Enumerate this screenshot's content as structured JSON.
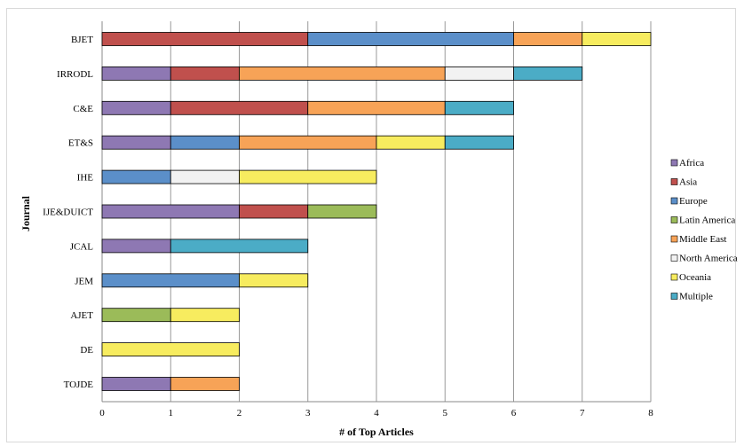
{
  "chart_data": {
    "type": "bar",
    "orientation": "horizontal",
    "stacked": true,
    "xlabel": "# of Top Articles",
    "ylabel": "Journal",
    "xlim": [
      0,
      8
    ],
    "xticks": [
      0,
      1,
      2,
      3,
      4,
      5,
      6,
      7,
      8
    ],
    "grid": "vertical",
    "legend_position": "right",
    "categories": [
      "BJET",
      "IRRODL",
      "C&E",
      "ET&S",
      "IHE",
      "IJE&DUICT",
      "JCAL",
      "JEM",
      "AJET",
      "DE",
      "TOJDE"
    ],
    "series": [
      {
        "name": "Africa",
        "color": "#8e78b3",
        "values": [
          0,
          1,
          1,
          1,
          0,
          2,
          1,
          0,
          0,
          0,
          1
        ]
      },
      {
        "name": "Asia",
        "color": "#c0504d",
        "values": [
          3,
          1,
          2,
          0,
          0,
          1,
          0,
          0,
          0,
          0,
          0
        ]
      },
      {
        "name": "Europe",
        "color": "#5b8fc9",
        "values": [
          3,
          0,
          0,
          1,
          1,
          0,
          0,
          2,
          0,
          0,
          0
        ]
      },
      {
        "name": "Latin America",
        "color": "#9bbb59",
        "values": [
          0,
          0,
          0,
          0,
          0,
          1,
          0,
          0,
          1,
          0,
          0
        ]
      },
      {
        "name": "Middle East",
        "color": "#f7a357",
        "values": [
          1,
          3,
          2,
          2,
          0,
          0,
          0,
          0,
          0,
          0,
          1
        ]
      },
      {
        "name": "North America",
        "color": "#f2f2f2",
        "values": [
          0,
          1,
          0,
          0,
          1,
          0,
          0,
          0,
          0,
          0,
          0
        ]
      },
      {
        "name": "Oceania",
        "color": "#f7ec5f",
        "values": [
          1,
          0,
          0,
          1,
          2,
          0,
          0,
          1,
          1,
          2,
          0
        ]
      },
      {
        "name": "Multiple",
        "color": "#4bacc6",
        "values": [
          0,
          1,
          1,
          1,
          0,
          0,
          2,
          0,
          0,
          0,
          0
        ]
      }
    ]
  }
}
